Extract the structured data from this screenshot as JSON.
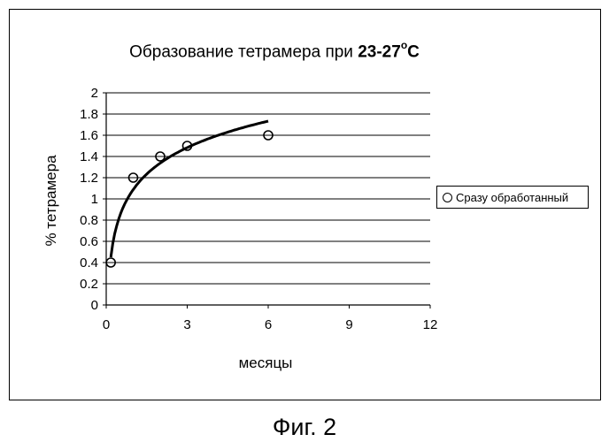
{
  "chart_data": {
    "type": "scatter",
    "title_prefix": "Образование тетрамера при ",
    "title_bold": "23-27",
    "title_sup": "o",
    "title_suffix": "C",
    "xlabel": "месяцы",
    "ylabel": "% тетрамера",
    "xlim": [
      0,
      12
    ],
    "ylim": [
      0,
      2
    ],
    "x_ticks": [
      0,
      3,
      6,
      9,
      12
    ],
    "y_ticks": [
      0,
      0.2,
      0.4,
      0.6,
      0.8,
      1,
      1.2,
      1.4,
      1.6,
      1.8,
      2
    ],
    "grid": "horizontal",
    "legend_position": "right",
    "series": [
      {
        "name": "Сразу обработанный",
        "marker": "open-circle",
        "x": [
          0.17,
          1,
          2,
          3,
          6
        ],
        "y": [
          0.4,
          1.2,
          1.4,
          1.5,
          1.6
        ]
      }
    ],
    "trendline": {
      "type": "logarithmic",
      "x_range": [
        0.17,
        6
      ],
      "a": 1.088,
      "b": 0.36
    }
  },
  "caption": "Фиг. 2"
}
